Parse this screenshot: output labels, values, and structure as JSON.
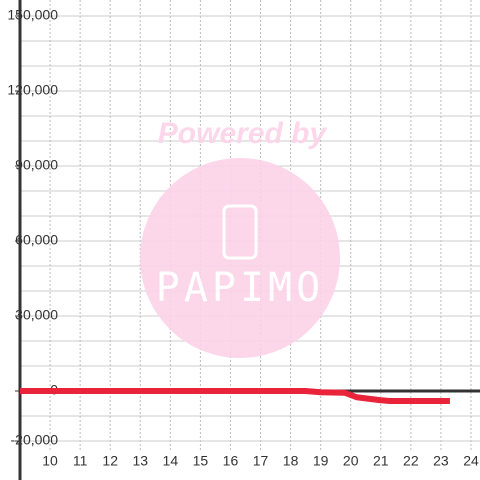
{
  "chart_data": {
    "type": "line",
    "x": [
      9,
      18.5,
      19,
      19.8,
      20.2,
      21,
      21.3,
      23.3
    ],
    "series": [
      {
        "color": "#e8233a",
        "values": [
          0,
          0,
          -500,
          -700,
          -2500,
          -3700,
          -4000,
          -4000
        ]
      }
    ],
    "xlim": [
      9,
      24.3
    ],
    "xticks": [
      10,
      11,
      12,
      13,
      14,
      15,
      16,
      17,
      18,
      19,
      20,
      21,
      22,
      23,
      24
    ],
    "ylim": [
      -20000,
      150000
    ],
    "yticks": [
      {
        "value": -20000,
        "label": "-20,000"
      },
      0,
      {
        "value": 30000,
        "label": "30,000"
      },
      {
        "value": 60000,
        "label": "60,000"
      },
      {
        "value": 90000,
        "label": "90,000"
      },
      {
        "value": 120000,
        "label": "120,000"
      },
      {
        "value": 150000,
        "label": "150,000"
      }
    ],
    "y_minor_ticks": [
      -10000,
      10000,
      20000,
      40000,
      50000,
      70000,
      80000,
      100000,
      110000,
      130000,
      140000
    ],
    "grid": true,
    "watermark": {
      "top": "Powered by",
      "brand": "PAPIMO"
    }
  }
}
